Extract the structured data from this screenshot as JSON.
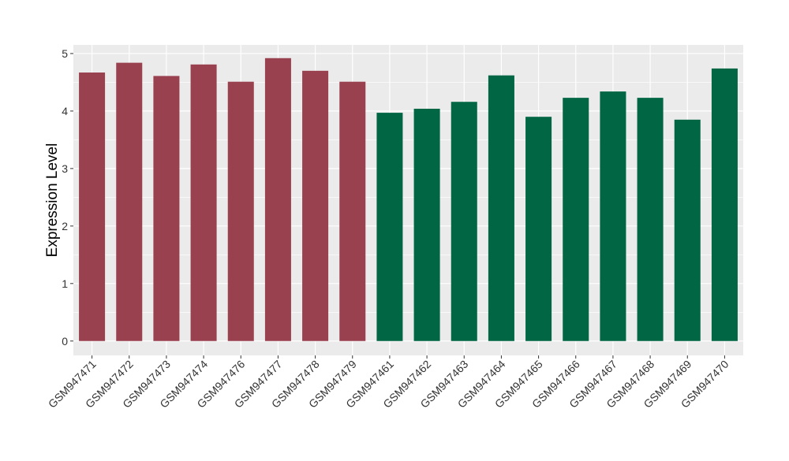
{
  "chart_data": {
    "type": "bar",
    "title": "",
    "xlabel": "",
    "ylabel": "Expression Level",
    "ylim": [
      -0.25,
      5.15
    ],
    "yticks": [
      0,
      1,
      2,
      3,
      4,
      5
    ],
    "grid": true,
    "legend": "none",
    "categories": [
      "GSM947471",
      "GSM947472",
      "GSM947473",
      "GSM947474",
      "GSM947476",
      "GSM947477",
      "GSM947478",
      "GSM947479",
      "GSM947461",
      "GSM947462",
      "GSM947463",
      "GSM947464",
      "GSM947465",
      "GSM947466",
      "GSM947467",
      "GSM947468",
      "GSM947469",
      "GSM947470"
    ],
    "values": [
      4.67,
      4.84,
      4.61,
      4.81,
      4.51,
      4.92,
      4.7,
      4.51,
      3.97,
      4.04,
      4.16,
      4.62,
      3.9,
      4.23,
      4.34,
      4.23,
      3.85,
      4.74
    ],
    "group_colors": [
      "#9A4150",
      "#9A4150",
      "#9A4150",
      "#9A4150",
      "#9A4150",
      "#9A4150",
      "#9A4150",
      "#9A4150",
      "#006644",
      "#006644",
      "#006644",
      "#006644",
      "#006644",
      "#006644",
      "#006644",
      "#006644",
      "#006644",
      "#006644"
    ],
    "panel_background": "#EBEBEB",
    "grid_color": "#FFFFFF"
  }
}
